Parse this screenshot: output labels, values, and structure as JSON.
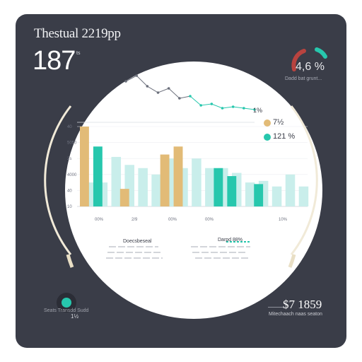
{
  "header": {
    "title": "Thestual 2219pp"
  },
  "kpi": {
    "value": "187",
    "unit": "ts"
  },
  "gauge": {
    "value": "4,6 %",
    "label": "Dadd bat grunt...",
    "colors": {
      "red": "#b8433f",
      "teal": "#27c7ad"
    }
  },
  "indicator": {
    "value": "1½",
    "label": "Seats Transdd Sudd"
  },
  "bottom_right": {
    "value": "$7 1859",
    "label": "Mitechaach naas seaton"
  },
  "legend": {
    "items": [
      {
        "label": "7½",
        "color": "#e2bb77"
      },
      {
        "label": "121 %",
        "color": "#27c7ad"
      }
    ]
  },
  "sparkline_label": "1%",
  "captions": {
    "left_title": "Doecsbeseal",
    "right_title": "Darpd 88%"
  },
  "chart_data": {
    "type": "bar",
    "title": "",
    "xlabel": "",
    "ylabel": "",
    "x_tick_labels": [
      "00%",
      "2/9",
      "00%",
      "00%",
      "10%"
    ],
    "y_tick_labels": [
      "40",
      "5050",
      "2s",
      "4000",
      "40",
      "10"
    ],
    "series": [
      {
        "color": "#e2bb77",
        "values": [
          100,
          0,
          0,
          22,
          0,
          0,
          65,
          75,
          0,
          0,
          0,
          0,
          0,
          0,
          0,
          0,
          0
        ]
      },
      {
        "color": "#27c7ad",
        "values": [
          0,
          75,
          0,
          0,
          0,
          0,
          0,
          0,
          0,
          0,
          48,
          38,
          0,
          28,
          0,
          0,
          0
        ]
      },
      {
        "color": "#c9eeeb",
        "values": [
          30,
          30,
          62,
          52,
          48,
          40,
          60,
          48,
          60,
          48,
          48,
          42,
          30,
          32,
          25,
          40,
          25
        ]
      }
    ],
    "ylim": [
      0,
      100
    ],
    "sparkline": [
      62,
      70,
      55,
      46,
      52,
      38,
      41,
      28,
      30,
      24,
      26,
      24,
      22
    ]
  }
}
